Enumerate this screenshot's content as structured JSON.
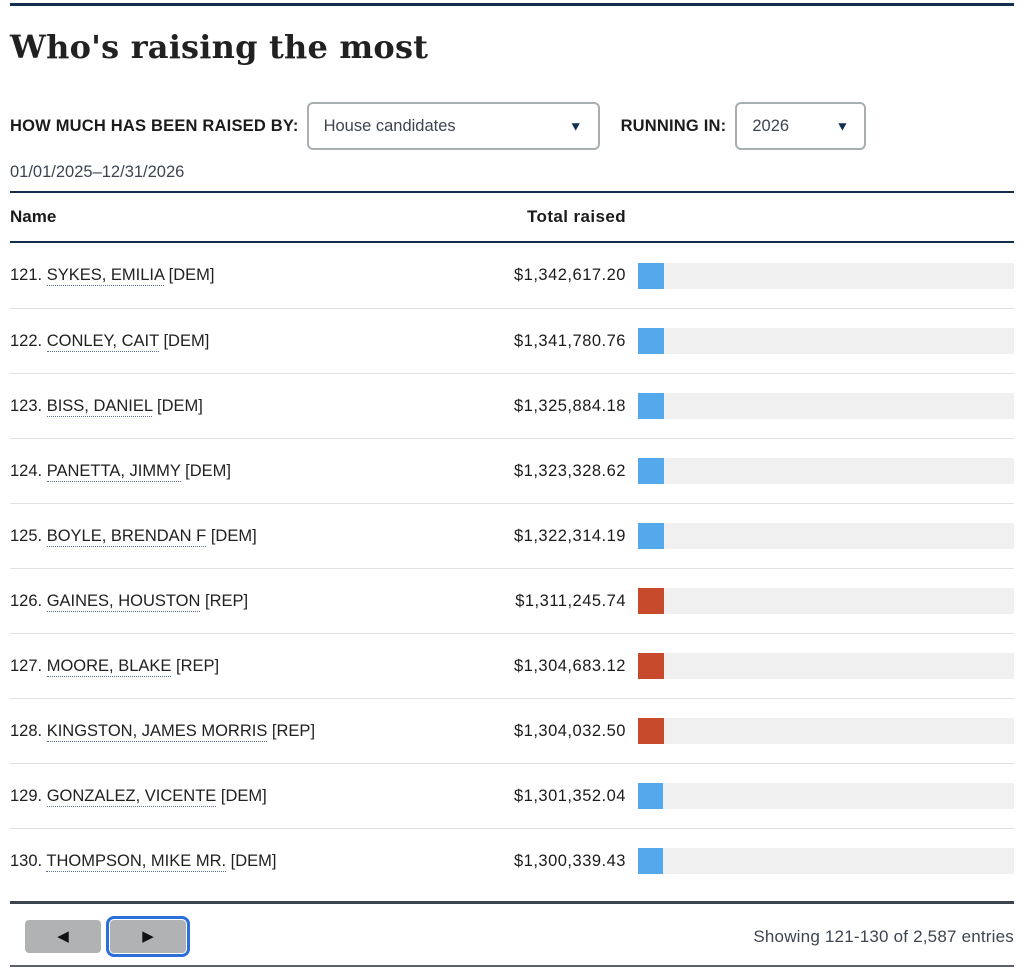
{
  "page": {
    "title": "Who's raising the most"
  },
  "controls": {
    "raised_by_label": "HOW MUCH HAS BEEN RAISED BY:",
    "raised_by_value": "House candidates",
    "running_in_label": "RUNNING IN:",
    "running_in_value": "2026",
    "date_range": "01/01/2025–12/31/2026"
  },
  "icons": {
    "dropdown_caret": "▼",
    "prev_arrow": "◀",
    "next_arrow": "▶"
  },
  "table": {
    "columns": {
      "name": "Name",
      "total_raised": "Total raised"
    },
    "rows": [
      {
        "rank": "121.",
        "name": "SYKES, EMILIA",
        "party": "DEM",
        "party_label": "[DEM]",
        "amount": "$1,342,617.20",
        "value": 1342617.2
      },
      {
        "rank": "122.",
        "name": "CONLEY, CAIT",
        "party": "DEM",
        "party_label": "[DEM]",
        "amount": "$1,341,780.76",
        "value": 1341780.76
      },
      {
        "rank": "123.",
        "name": "BISS, DANIEL",
        "party": "DEM",
        "party_label": "[DEM]",
        "amount": "$1,325,884.18",
        "value": 1325884.18
      },
      {
        "rank": "124.",
        "name": "PANETTA, JIMMY",
        "party": "DEM",
        "party_label": "[DEM]",
        "amount": "$1,323,328.62",
        "value": 1323328.62
      },
      {
        "rank": "125.",
        "name": "BOYLE, BRENDAN F",
        "party": "DEM",
        "party_label": "[DEM]",
        "amount": "$1,322,314.19",
        "value": 1322314.19
      },
      {
        "rank": "126.",
        "name": "GAINES, HOUSTON",
        "party": "REP",
        "party_label": "[REP]",
        "amount": "$1,311,245.74",
        "value": 1311245.74
      },
      {
        "rank": "127.",
        "name": "MOORE, BLAKE",
        "party": "REP",
        "party_label": "[REP]",
        "amount": "$1,304,683.12",
        "value": 1304683.12
      },
      {
        "rank": "128.",
        "name": "KINGSTON, JAMES MORRIS",
        "party": "REP",
        "party_label": "[REP]",
        "amount": "$1,304,032.50",
        "value": 1304032.5
      },
      {
        "rank": "129.",
        "name": "GONZALEZ, VICENTE",
        "party": "DEM",
        "party_label": "[DEM]",
        "amount": "$1,301,352.04",
        "value": 1301352.04
      },
      {
        "rank": "130.",
        "name": "THOMPSON, MIKE MR.",
        "party": "DEM",
        "party_label": "[DEM]",
        "amount": "$1,300,339.43",
        "value": 1300339.43
      }
    ],
    "bar_scale_max": 19200000
  },
  "pagination": {
    "showing_text": "Showing 121-130 of 2,587 entries"
  },
  "colors": {
    "dem_bar": "#54a8ec",
    "rep_bar": "#c84a2c",
    "bar_track": "#f0f0f0",
    "navy": "#112e51",
    "focus_ring": "#2b6fd9"
  }
}
